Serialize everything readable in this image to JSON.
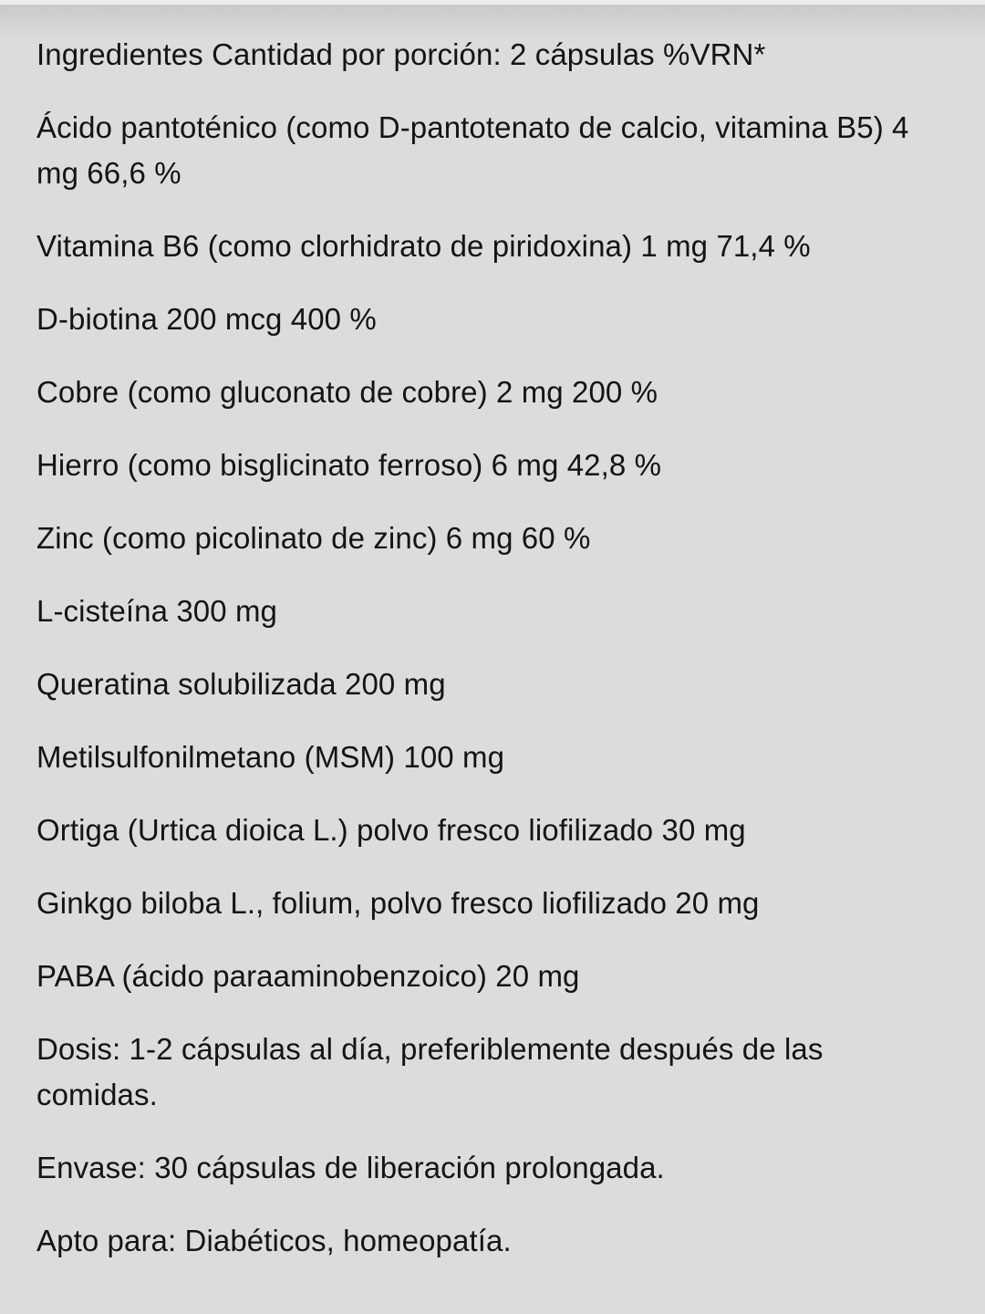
{
  "paragraphs": [
    "Ingredientes Cantidad por porción: 2 cápsulas %VRN*",
    "Ácido pantoténico (como D-pantotenato de calcio, vitamina B5) 4 mg 66,6 %",
    "Vitamina B6 (como clorhidrato de piridoxina) 1 mg 71,4 %",
    "D-biotina 200 mcg 400 %",
    "Cobre (como gluconato de cobre) 2 mg 200 %",
    "Hierro (como bisglicinato ferroso) 6 mg 42,8 %",
    "Zinc (como picolinato de zinc) 6 mg 60 %",
    "L-cisteína 300 mg",
    "Queratina solubilizada 200 mg",
    "Metilsulfonilmetano (MSM) 100 mg",
    "Ortiga (Urtica dioica L.) polvo fresco liofilizado 30 mg",
    "Ginkgo biloba L., folium, polvo fresco liofilizado 20 mg",
    "PABA (ácido paraaminobenzoico) 20 mg",
    "Dosis: 1-2 cápsulas al día, preferiblemente después de las comidas.",
    "Envase: 30 cápsulas de liberación prolongada.",
    "Apto para: Diabéticos, homeopatía."
  ]
}
